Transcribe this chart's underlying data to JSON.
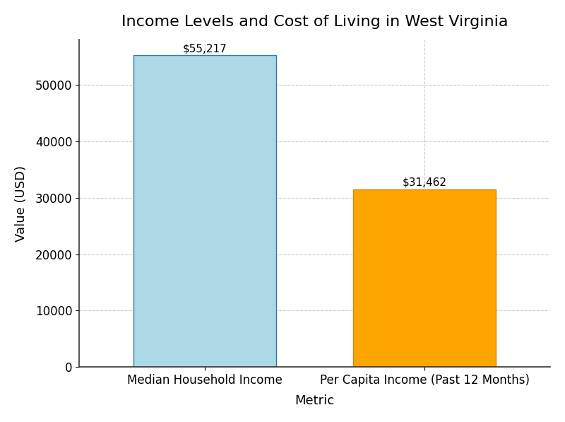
{
  "title": "Income Levels and Cost of Living in West Virginia",
  "categories": [
    "Median Household Income",
    "Per Capita Income (Past 12 Months)"
  ],
  "values": [
    55217,
    31462
  ],
  "bar_colors": [
    "#ADD8E6",
    "#FFA500"
  ],
  "bar_edgecolors": [
    "#2c7bb6",
    "#d4860a"
  ],
  "xlabel": "Metric",
  "ylabel": "Value (USD)",
  "ylim": [
    0,
    58000
  ],
  "yticks": [
    0,
    10000,
    20000,
    30000,
    40000,
    50000
  ],
  "annotations": [
    "$55,217",
    "$31,462"
  ],
  "title_fontsize": 16,
  "label_fontsize": 13,
  "tick_fontsize": 12,
  "annotation_fontsize": 11,
  "background_color": "#ffffff",
  "grid_color": "#cccccc",
  "grid_style": "--"
}
